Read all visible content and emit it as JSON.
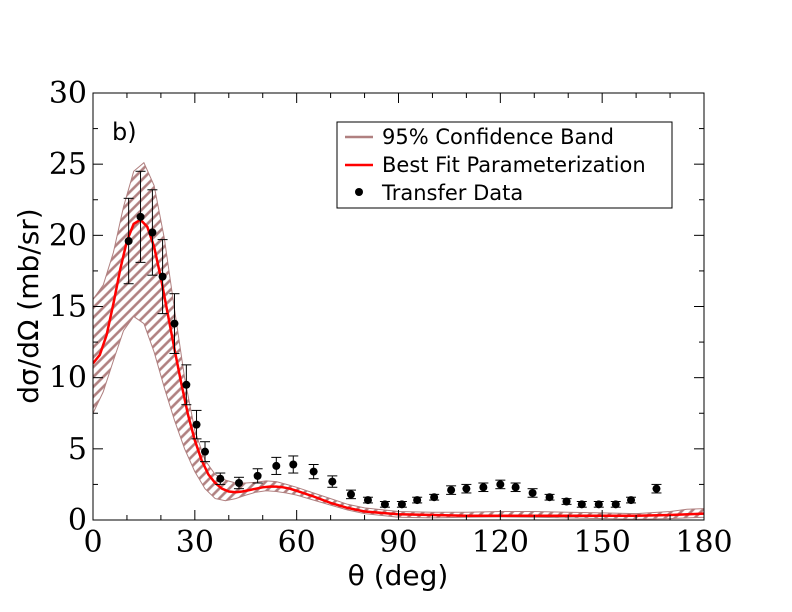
{
  "chart_data": {
    "type": "line",
    "panel_label": "b)",
    "xlabel": "θ (deg)",
    "ylabel": "dσ/dΩ (mb/sr)",
    "xlim": [
      0,
      180
    ],
    "ylim": [
      0,
      30
    ],
    "xticks": [
      0,
      30,
      60,
      90,
      120,
      150,
      180
    ],
    "yticks": [
      0,
      5,
      10,
      15,
      20,
      25,
      30
    ],
    "grid": false,
    "legend_position": "top-right",
    "legend": {
      "band": "95% Confidence Band",
      "fit": "Best Fit Parameterization",
      "data": "Transfer Data"
    },
    "colors": {
      "band": "#b08080",
      "fit": "#ff0000",
      "data": "#000000"
    },
    "band": {
      "theta": [
        0,
        3,
        6,
        9,
        12,
        15,
        18,
        21,
        24,
        27,
        30,
        33,
        36,
        39,
        42,
        45,
        48,
        51,
        54,
        57,
        60,
        65,
        70,
        75,
        80,
        90,
        100,
        110,
        120,
        130,
        140,
        150,
        160,
        170,
        175,
        180
      ],
      "lower": [
        7.5,
        9.0,
        11.2,
        13.3,
        14.3,
        13.8,
        11.8,
        9.3,
        7.0,
        5.0,
        3.4,
        2.2,
        1.5,
        1.35,
        1.5,
        1.75,
        1.95,
        2.05,
        2.0,
        1.9,
        1.75,
        1.4,
        1.05,
        0.7,
        0.45,
        0.2,
        0.15,
        0.2,
        0.22,
        0.2,
        0.15,
        0.1,
        0.05,
        0.1,
        0.15,
        0.2
      ],
      "upper": [
        15.5,
        16.5,
        18.8,
        22.0,
        24.5,
        25.1,
        23.5,
        19.8,
        14.8,
        10.0,
        6.3,
        4.2,
        3.2,
        2.8,
        2.6,
        2.6,
        2.65,
        2.75,
        2.7,
        2.5,
        2.3,
        1.9,
        1.5,
        1.1,
        0.85,
        0.6,
        0.55,
        0.55,
        0.6,
        0.6,
        0.55,
        0.5,
        0.45,
        0.6,
        0.75,
        0.8
      ]
    },
    "fit": {
      "theta": [
        0,
        2,
        4,
        6,
        8,
        10,
        12,
        14,
        16,
        18,
        20,
        22,
        24,
        26,
        28,
        30,
        32,
        34,
        36,
        38,
        40,
        42,
        44,
        46,
        48,
        50,
        52,
        54,
        56,
        58,
        60,
        65,
        70,
        75,
        80,
        90,
        100,
        110,
        120,
        130,
        140,
        150,
        160,
        170,
        180
      ],
      "values": [
        11.0,
        11.6,
        13.0,
        15.2,
        17.6,
        19.6,
        20.8,
        21.1,
        20.6,
        19.2,
        17.0,
        14.5,
        12.0,
        9.6,
        7.4,
        5.6,
        4.2,
        3.2,
        2.6,
        2.2,
        2.0,
        1.95,
        2.0,
        2.1,
        2.2,
        2.3,
        2.35,
        2.35,
        2.3,
        2.2,
        2.05,
        1.65,
        1.2,
        0.85,
        0.6,
        0.4,
        0.35,
        0.3,
        0.3,
        0.3,
        0.3,
        0.3,
        0.3,
        0.35,
        0.45
      ]
    },
    "data": {
      "theta": [
        10.5,
        14,
        17.5,
        20.5,
        24,
        27.5,
        30.5,
        33,
        37.5,
        43,
        48.5,
        54,
        59,
        65,
        70.5,
        76,
        81,
        86,
        91,
        95.5,
        100.5,
        105.5,
        110,
        115,
        120,
        124.5,
        129.5,
        134.5,
        139.5,
        144,
        149,
        154,
        158.5,
        166
      ],
      "values": [
        19.6,
        21.3,
        20.2,
        17.1,
        13.8,
        9.5,
        6.7,
        4.8,
        2.9,
        2.6,
        3.1,
        3.8,
        3.9,
        3.4,
        2.7,
        1.8,
        1.4,
        1.1,
        1.1,
        1.4,
        1.6,
        2.1,
        2.2,
        2.3,
        2.5,
        2.3,
        1.9,
        1.6,
        1.3,
        1.1,
        1.1,
        1.1,
        1.4,
        2.2
      ],
      "errors": [
        3.0,
        3.2,
        3.0,
        2.6,
        2.1,
        1.4,
        1.0,
        0.7,
        0.4,
        0.4,
        0.5,
        0.6,
        0.6,
        0.5,
        0.4,
        0.3,
        0.2,
        0.2,
        0.2,
        0.2,
        0.2,
        0.3,
        0.3,
        0.3,
        0.3,
        0.3,
        0.3,
        0.2,
        0.2,
        0.2,
        0.2,
        0.2,
        0.2,
        0.3
      ]
    }
  }
}
